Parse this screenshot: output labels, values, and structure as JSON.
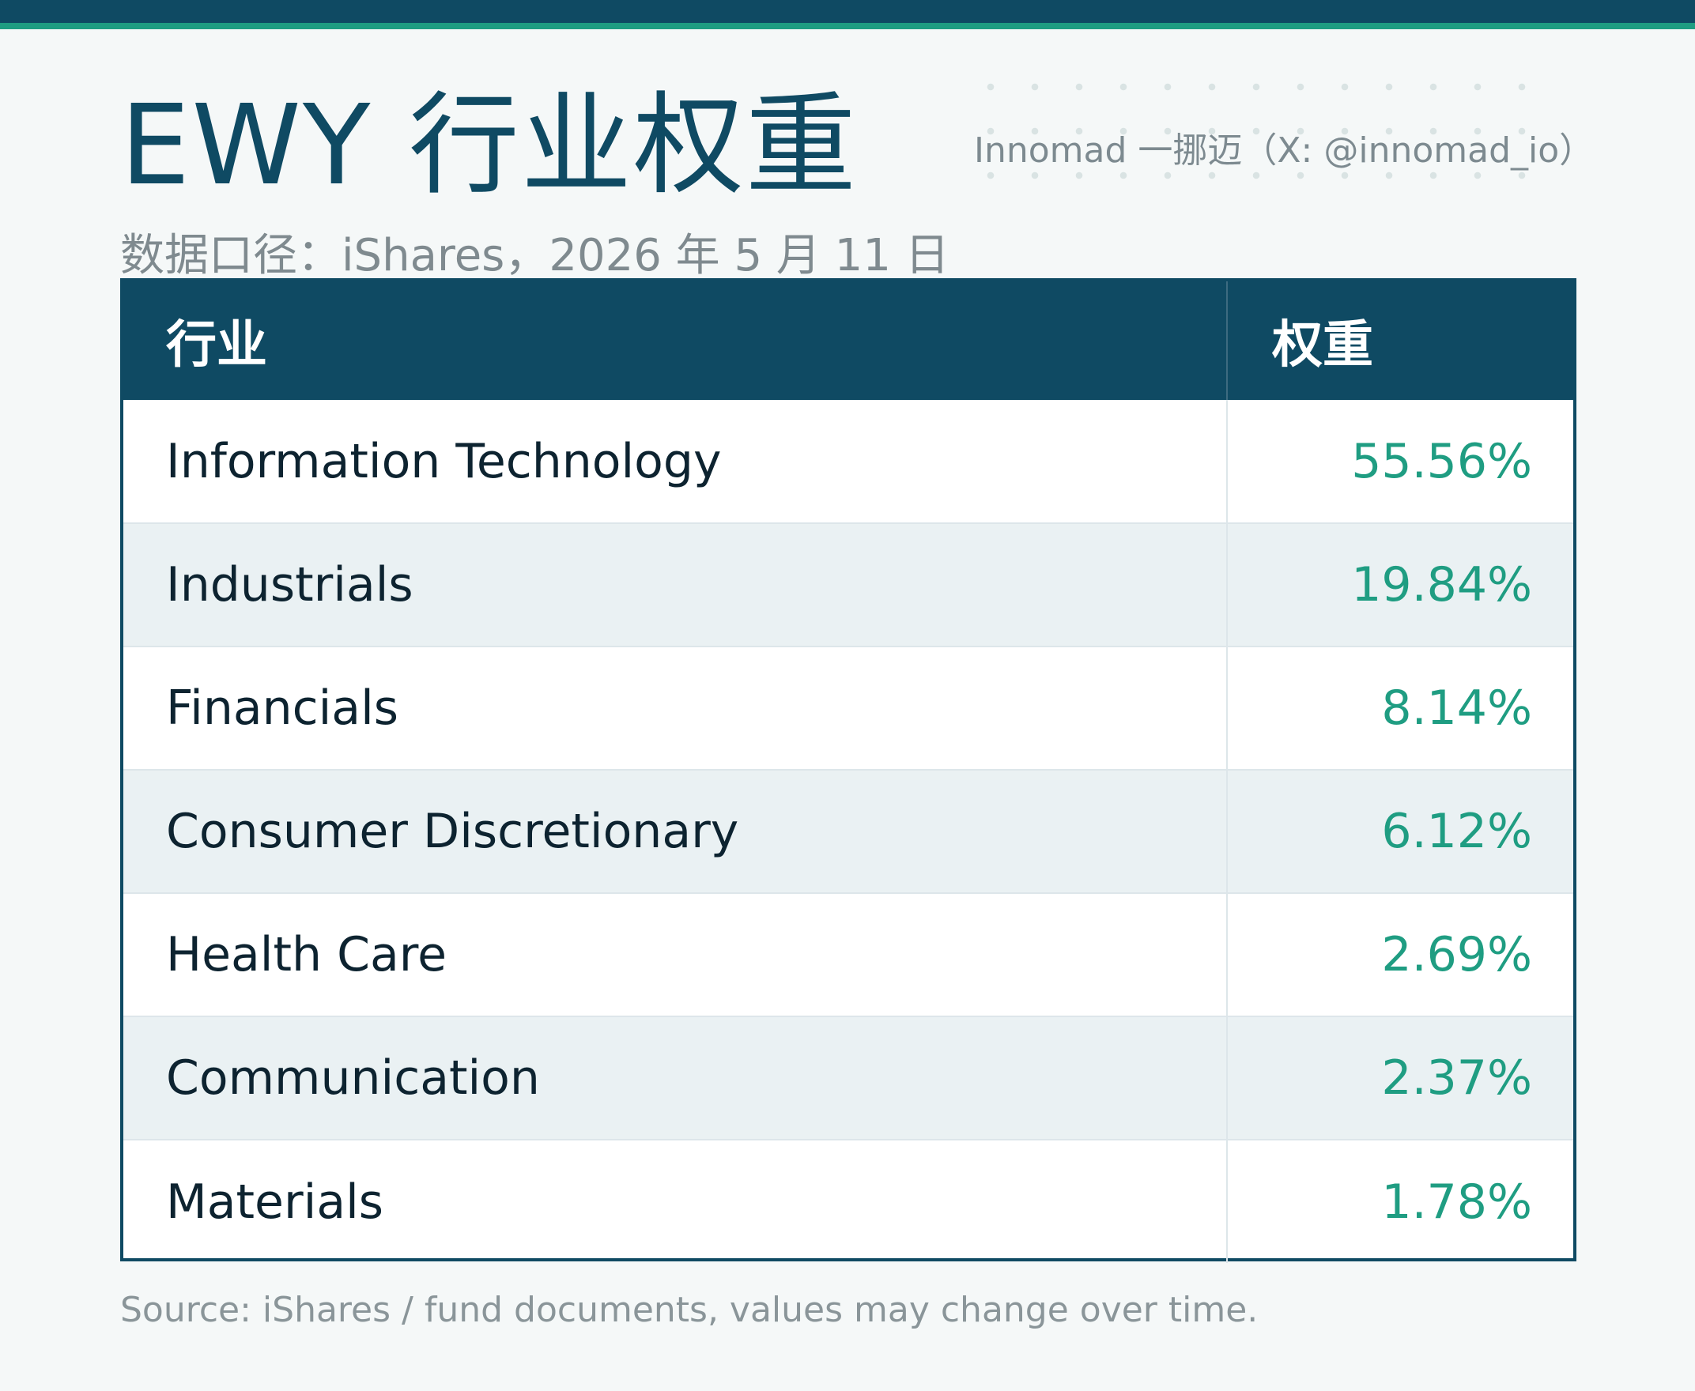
{
  "header": {
    "title": "EWY 行业权重",
    "credit": "Innomad 一挪迈（X: @innomad_io）",
    "subtitle": "数据口径：iShares，2026 年 5 月 11 日"
  },
  "table": {
    "columns": [
      "行业",
      "权重"
    ],
    "rows": [
      {
        "sector": "Information Technology",
        "weight": "55.56%"
      },
      {
        "sector": "Industrials",
        "weight": "19.84%"
      },
      {
        "sector": "Financials",
        "weight": "8.14%"
      },
      {
        "sector": "Consumer Discretionary",
        "weight": "6.12%"
      },
      {
        "sector": "Health Care",
        "weight": "2.69%"
      },
      {
        "sector": "Communication",
        "weight": "2.37%"
      },
      {
        "sector": "Materials",
        "weight": "1.78%"
      }
    ]
  },
  "footer": {
    "note": "Source: iShares / fund documents, values may change over time."
  },
  "colors": {
    "primary": "#0f4a63",
    "accent": "#1f9d82",
    "row_alt": "#eaf1f3"
  }
}
